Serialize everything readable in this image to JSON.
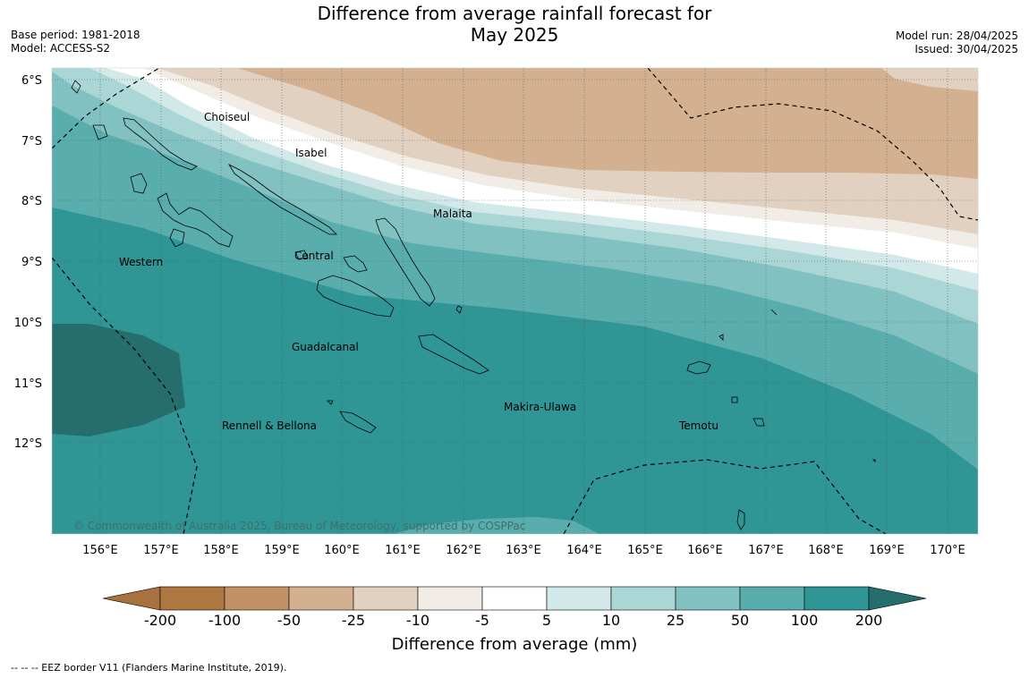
{
  "title_line1": "Difference from average rainfall forecast for",
  "title_line2": "May 2025",
  "base_period": "Base period: 1981-2018",
  "model": "Model: ACCESS-S2",
  "model_run": "Model run: 28/04/2025",
  "issued": "Issued: 30/04/2025",
  "copyright": "© Commonwealth of Australia 2025, Bureau of Meteorology, supported by COSPPac",
  "eez_note": "--  --  -- EEZ border V11 (Flanders Marine Institute, 2019).",
  "lat_labels": [
    "6°S",
    "7°S",
    "8°S",
    "9°S",
    "10°S",
    "11°S",
    "12°S"
  ],
  "lon_labels": [
    "156°E",
    "157°E",
    "158°E",
    "159°E",
    "160°E",
    "161°E",
    "162°E",
    "163°E",
    "164°E",
    "165°E",
    "166°E",
    "167°E",
    "168°E",
    "169°E",
    "170°E"
  ],
  "places": [
    "Choiseul",
    "Isabel",
    "Malaita",
    "Western",
    "Central",
    "Guadalcanal",
    "Makira-Ulawa",
    "Rennell & Bellona",
    "Temotu"
  ],
  "colorbar": {
    "label": "Difference from average (mm)",
    "ticks": [
      "-200",
      "-100",
      "-50",
      "-25",
      "-10",
      "-5",
      "5",
      "10",
      "25",
      "50",
      "100",
      "200"
    ],
    "colors": [
      "#a87240",
      "#ae7641",
      "#c39166",
      "#d3b08f",
      "#e2d1c0",
      "#f2ece6",
      "#ffffff",
      "#d3e8e8",
      "#aad6d6",
      "#82c1c1",
      "#5aadad",
      "#2f9595",
      "#266e6e"
    ]
  }
}
